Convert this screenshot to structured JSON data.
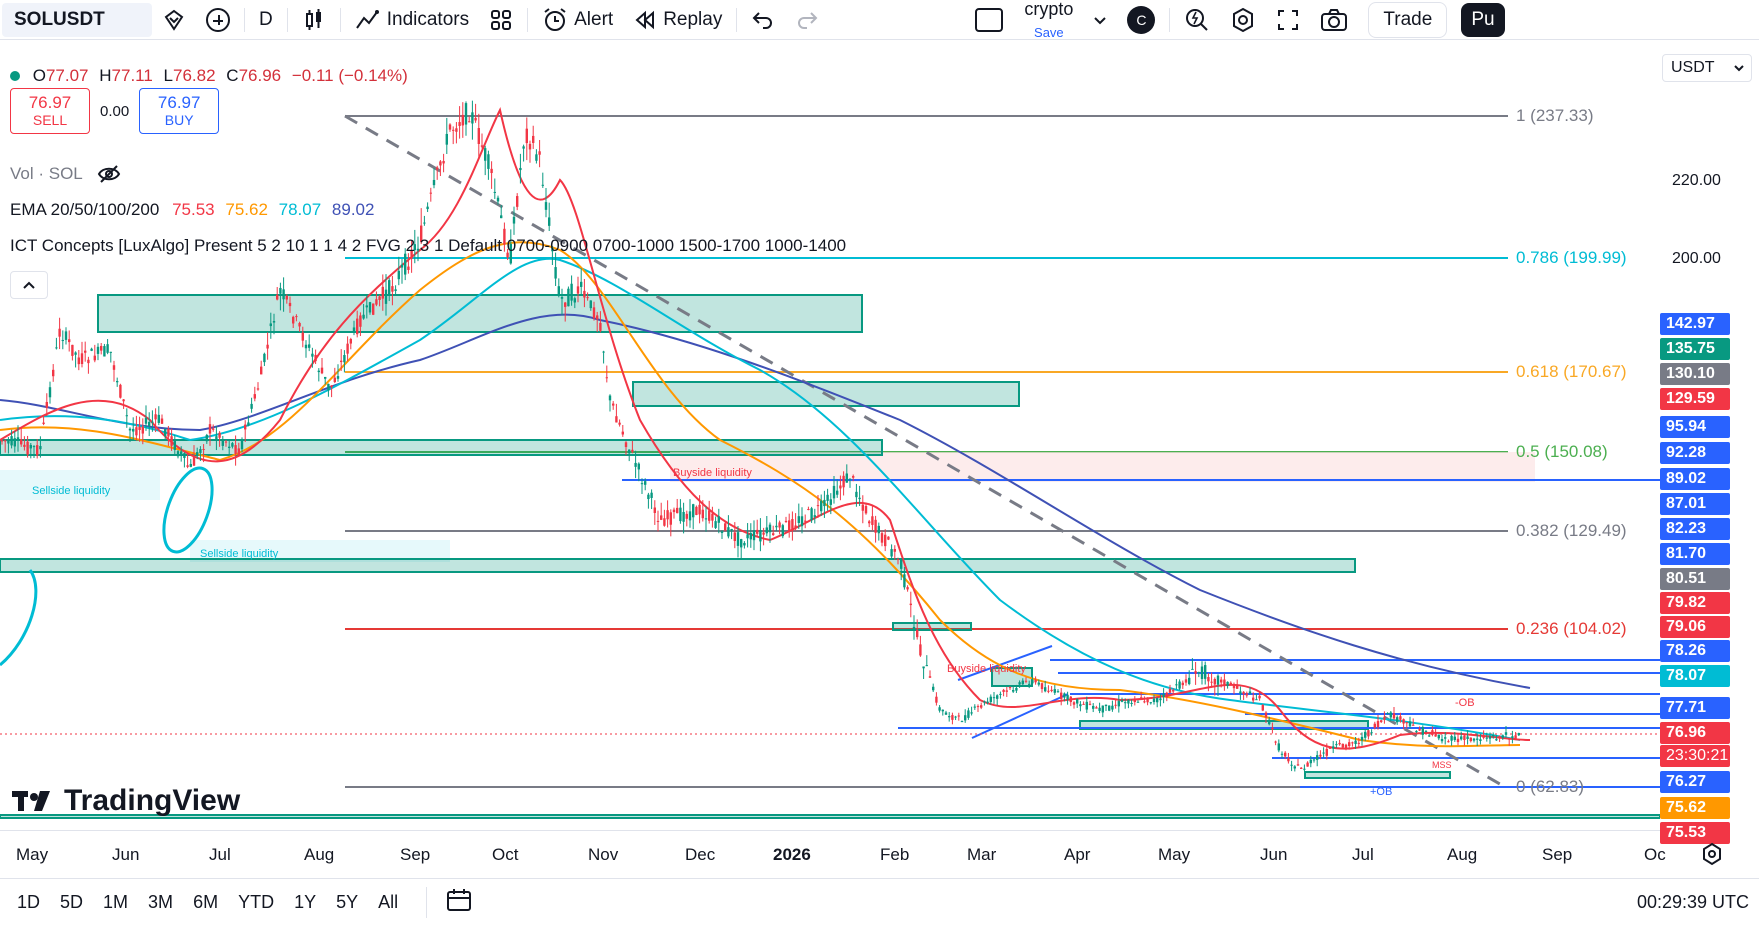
{
  "toolbar": {
    "symbol": "SOLUSDT",
    "interval": "D",
    "indicators_label": "Indicators",
    "alert_label": "Alert",
    "replay_label": "Replay",
    "layout_name": "crypto",
    "save_label": "Save",
    "avatar_letter": "C",
    "trade_label": "Trade",
    "publish_label": "Pu"
  },
  "legend": {
    "open_label": "O",
    "open": "77.07",
    "high_label": "H",
    "high": "77.11",
    "low_label": "L",
    "low": "76.82",
    "close_label": "C",
    "close": "76.96",
    "change": "−0.11 (−0.14%)",
    "sell_price": "76.97",
    "sell_label": "SELL",
    "spread": "0.00",
    "buy_price": "76.97",
    "buy_label": "BUY",
    "volume": "Vol · SOL",
    "ema_label": "EMA 20/50/100/200",
    "ema_values": [
      "75.53",
      "75.62",
      "78.07",
      "89.02"
    ],
    "ema_colors": [
      "#f23645",
      "#ff9800",
      "#00bcd4",
      "#3f51b5"
    ],
    "ict_label": "ICT Concepts [LuxAlgo] Present 5 2 10 1 1 4 2 FVG 2 3 1 Default 0700-0900 0700-1000 1500-1700 1000-1400"
  },
  "price_scale": {
    "currency": "USDT",
    "ticks": [
      "220.00",
      "200.00"
    ],
    "labels": [
      {
        "value": "142.97",
        "color": "#2962ff"
      },
      {
        "value": "135.75",
        "color": "#089981"
      },
      {
        "value": "130.10",
        "color": "#787b86"
      },
      {
        "value": "129.59",
        "color": "#f23645"
      },
      {
        "value": "95.94",
        "color": "#2962ff"
      },
      {
        "value": "92.28",
        "color": "#2962ff"
      },
      {
        "value": "89.02",
        "color": "#2962ff"
      },
      {
        "value": "87.01",
        "color": "#2962ff"
      },
      {
        "value": "82.23",
        "color": "#2962ff"
      },
      {
        "value": "81.70",
        "color": "#2962ff"
      },
      {
        "value": "80.51",
        "color": "#787b86"
      },
      {
        "value": "79.82",
        "color": "#f23645"
      },
      {
        "value": "79.06",
        "color": "#f23645"
      },
      {
        "value": "78.26",
        "color": "#2962ff"
      },
      {
        "value": "78.07",
        "color": "#00bcd4"
      },
      {
        "value": "77.71",
        "color": "#2962ff"
      },
      {
        "value": "76.96",
        "color": "#f23645"
      },
      {
        "value": "23:30:21",
        "color": "#f23645"
      },
      {
        "value": "76.27",
        "color": "#2962ff"
      },
      {
        "value": "75.62",
        "color": "#ff9800"
      },
      {
        "value": "75.53",
        "color": "#f23645"
      }
    ]
  },
  "fib_levels": [
    {
      "label": "1 (237.33)",
      "color": "#787b86"
    },
    {
      "label": "0.786 (199.99)",
      "color": "#00bcd4"
    },
    {
      "label": "0.618 (170.67)",
      "color": "#f9a825"
    },
    {
      "label": "0.5 (150.08)",
      "color": "#4caf50"
    },
    {
      "label": "0.382 (129.49)",
      "color": "#787b86"
    },
    {
      "label": "0.236 (104.02)",
      "color": "#e53935"
    },
    {
      "label": "0 (62.83)",
      "color": "#787b86"
    }
  ],
  "chart_annotations": {
    "sellside_1": "Sellside liquidity",
    "sellside_2": "Sellside liquidity",
    "buyside_1": "Buyside liquidity",
    "buyside_2": "Buyside liquidity",
    "ob_minus": "-OB",
    "ob_plus": "+OB",
    "mss": "MSS"
  },
  "time_axis": {
    "months": [
      "May",
      "Jun",
      "Jul",
      "Aug",
      "Sep",
      "Oct",
      "Nov",
      "Dec",
      "2026",
      "Feb",
      "Mar",
      "Apr",
      "May",
      "Jun",
      "Jul",
      "Aug",
      "Sep",
      "Oc"
    ]
  },
  "bottom_bar": {
    "ranges": [
      "1D",
      "5D",
      "1M",
      "3M",
      "6M",
      "YTD",
      "1Y",
      "5Y",
      "All"
    ],
    "clock": "00:29:39 UTC"
  },
  "branding": {
    "name": "TradingView"
  }
}
